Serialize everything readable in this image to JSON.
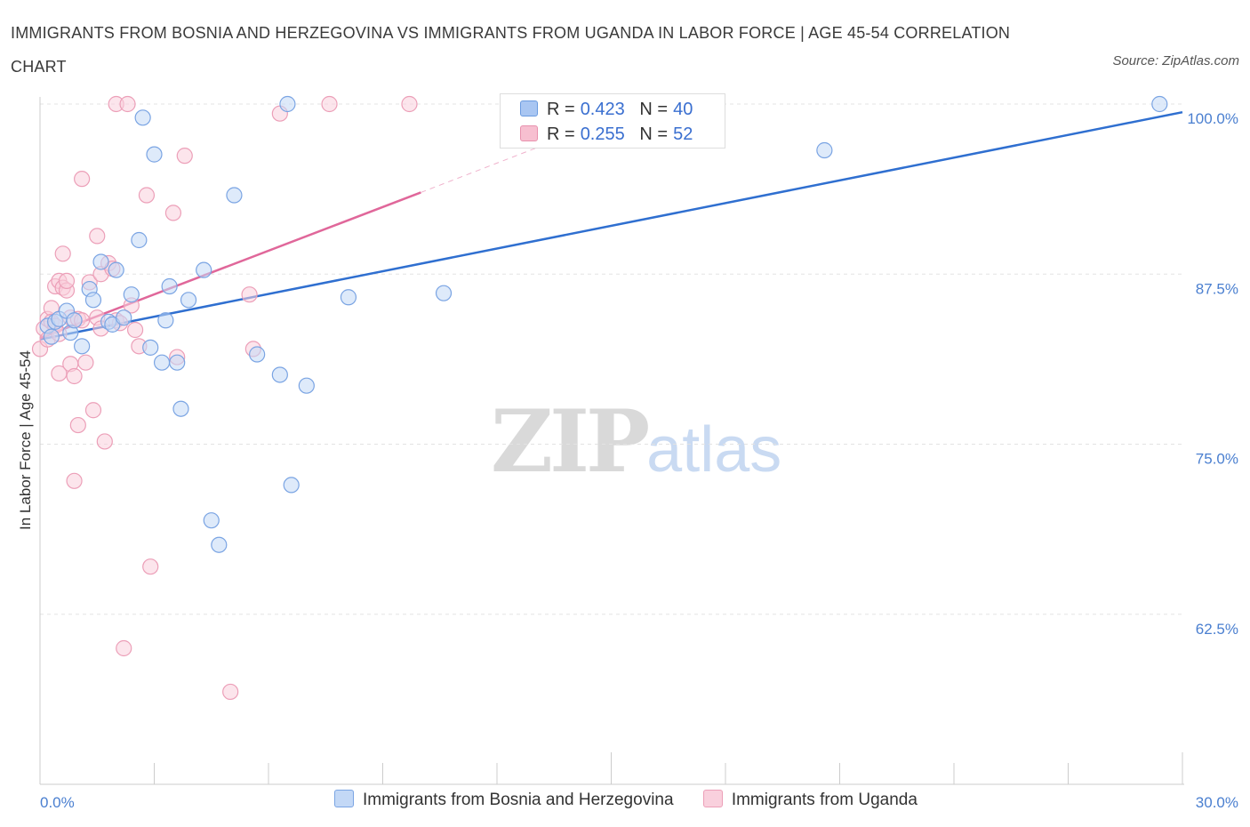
{
  "title": "IMMIGRANTS FROM BOSNIA AND HERZEGOVINA VS IMMIGRANTS FROM UGANDA IN LABOR FORCE | AGE 45-54 CORRELATION CHART",
  "source": "Source: ZipAtlas.com",
  "watermark": {
    "zip": "ZIP",
    "atlas": "atlas"
  },
  "legend": {
    "r_label": "R =",
    "n_label": "N =",
    "rows": [
      {
        "r": "0.423",
        "n": "40",
        "color": "#a9c6f2",
        "border": "#6b9be0"
      },
      {
        "r": "0.255",
        "n": "52",
        "color": "#f7bfd0",
        "border": "#e891ad"
      }
    ]
  },
  "bottom_legend": [
    {
      "label": "Immigrants from Bosnia and Herzegovina",
      "color": "#c3d8f6",
      "border": "#7aa4e3"
    },
    {
      "label": "Immigrants from Uganda",
      "color": "#f9d0dd",
      "border": "#ec9fb8"
    }
  ],
  "chart_data": {
    "type": "scatter",
    "title": "IMMIGRANTS FROM BOSNIA AND HERZEGOVINA VS IMMIGRANTS FROM UGANDA IN LABOR FORCE | AGE 45-54 CORRELATION CHART",
    "xlabel": "",
    "ylabel": "In Labor Force | Age 45-54",
    "xlim": [
      0,
      30
    ],
    "ylim": [
      50,
      100
    ],
    "x_tick_labels": [
      {
        "value": 0,
        "label": "0.0%"
      },
      {
        "value": 30,
        "label": "30.0%"
      }
    ],
    "y_tick_labels": [
      {
        "value": 100,
        "label": "100.0%"
      },
      {
        "value": 87.5,
        "label": "87.5%"
      },
      {
        "value": 75,
        "label": "75.0%"
      },
      {
        "value": 62.5,
        "label": "62.5%"
      }
    ],
    "grid": true,
    "legend_position": "top-center",
    "series": [
      {
        "name": "Immigrants from Bosnia and Herzegovina",
        "color": "#7aa4e3",
        "fill": "#c3d8f6",
        "trend": {
          "x0": 0.0,
          "y0": 82.7,
          "x1": 30.0,
          "y1": 99.4,
          "color": "#2f6fd0"
        },
        "points": [
          [
            0.2,
            83.7
          ],
          [
            0.3,
            82.9
          ],
          [
            0.4,
            84.0
          ],
          [
            0.5,
            84.2
          ],
          [
            0.7,
            84.8
          ],
          [
            0.8,
            83.2
          ],
          [
            0.9,
            84.1
          ],
          [
            1.1,
            82.2
          ],
          [
            1.3,
            86.4
          ],
          [
            1.4,
            85.6
          ],
          [
            1.6,
            88.4
          ],
          [
            1.8,
            84.0
          ],
          [
            1.9,
            83.8
          ],
          [
            2.0,
            87.8
          ],
          [
            2.2,
            84.3
          ],
          [
            2.4,
            86.0
          ],
          [
            2.6,
            90.0
          ],
          [
            2.7,
            99.0
          ],
          [
            2.9,
            82.1
          ],
          [
            3.0,
            96.3
          ],
          [
            3.2,
            81.0
          ],
          [
            3.3,
            84.1
          ],
          [
            3.4,
            86.6
          ],
          [
            3.6,
            81.0
          ],
          [
            3.7,
            77.6
          ],
          [
            3.9,
            85.6
          ],
          [
            4.3,
            87.8
          ],
          [
            4.5,
            69.4
          ],
          [
            4.7,
            67.6
          ],
          [
            5.1,
            93.3
          ],
          [
            5.7,
            81.6
          ],
          [
            6.3,
            80.1
          ],
          [
            6.5,
            100.0
          ],
          [
            6.6,
            72.0
          ],
          [
            7.0,
            79.3
          ],
          [
            8.1,
            85.8
          ],
          [
            10.6,
            86.1
          ],
          [
            15.4,
            100.0
          ],
          [
            20.6,
            96.6
          ],
          [
            29.4,
            100.0
          ]
        ]
      },
      {
        "name": "Immigrants from Uganda",
        "color": "#ec9fb8",
        "fill": "#f9d0dd",
        "trend": {
          "x0": 0.0,
          "y0": 82.8,
          "x1": 10.0,
          "y1": 93.5,
          "color": "#e0679a",
          "dash_x1": 15.0,
          "dash_y1": 98.9
        },
        "points": [
          [
            0.0,
            82.0
          ],
          [
            0.1,
            83.5
          ],
          [
            0.2,
            84.2
          ],
          [
            0.2,
            82.7
          ],
          [
            0.3,
            85.0
          ],
          [
            0.3,
            84.0
          ],
          [
            0.4,
            86.6
          ],
          [
            0.4,
            83.7
          ],
          [
            0.5,
            87.0
          ],
          [
            0.5,
            83.1
          ],
          [
            0.5,
            80.2
          ],
          [
            0.6,
            89.0
          ],
          [
            0.6,
            86.5
          ],
          [
            0.7,
            86.3
          ],
          [
            0.7,
            87.0
          ],
          [
            0.8,
            80.9
          ],
          [
            0.8,
            84.3
          ],
          [
            0.9,
            80.0
          ],
          [
            0.9,
            72.3
          ],
          [
            1.0,
            76.4
          ],
          [
            1.0,
            84.2
          ],
          [
            1.1,
            94.5
          ],
          [
            1.1,
            84.1
          ],
          [
            1.2,
            81.0
          ],
          [
            1.3,
            86.9
          ],
          [
            1.4,
            77.5
          ],
          [
            1.5,
            90.3
          ],
          [
            1.5,
            84.3
          ],
          [
            1.6,
            87.5
          ],
          [
            1.6,
            83.5
          ],
          [
            1.7,
            75.2
          ],
          [
            1.8,
            88.3
          ],
          [
            1.9,
            87.9
          ],
          [
            2.0,
            100.0
          ],
          [
            2.0,
            84.1
          ],
          [
            2.1,
            83.9
          ],
          [
            2.2,
            60.0
          ],
          [
            2.3,
            100.0
          ],
          [
            2.4,
            85.2
          ],
          [
            2.5,
            83.4
          ],
          [
            2.6,
            82.2
          ],
          [
            2.8,
            93.3
          ],
          [
            2.9,
            66.0
          ],
          [
            3.5,
            92.0
          ],
          [
            3.6,
            81.4
          ],
          [
            3.8,
            96.2
          ],
          [
            5.0,
            56.8
          ],
          [
            5.5,
            86.0
          ],
          [
            5.6,
            82.0
          ],
          [
            6.3,
            99.3
          ],
          [
            7.6,
            100.0
          ],
          [
            9.7,
            100.0
          ]
        ]
      }
    ]
  }
}
